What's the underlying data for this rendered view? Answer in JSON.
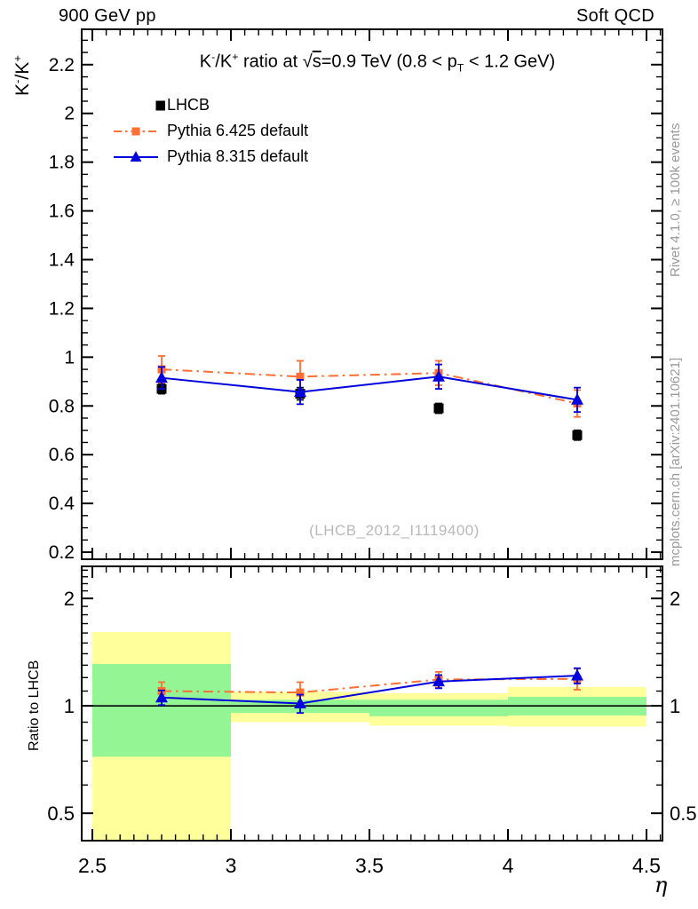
{
  "header": {
    "left": "900 GeV pp",
    "right": "Soft QCD"
  },
  "side_texts": {
    "top": "Rivet 4.1.0, ≥ 100k events",
    "bottom": "mcplots.cern.ch [arXiv:2401.10621]"
  },
  "watermark": "(LHCB_2012_I1119400)",
  "title_segments": [
    {
      "t": "K"
    },
    {
      "t": "-",
      "style": "sup"
    },
    {
      "t": "/K"
    },
    {
      "t": "+",
      "style": "sup"
    },
    {
      "t": " ratio at "
    },
    {
      "t": "√"
    },
    {
      "t": "s",
      "style": "overline"
    },
    {
      "t": "=0.9 TeV (0.8 < p"
    },
    {
      "t": "T",
      "style": "sub"
    },
    {
      "t": " < 1.2 GeV)"
    }
  ],
  "ylabel_main_segments": [
    {
      "t": "K"
    },
    {
      "t": "-",
      "style": "sup"
    },
    {
      "t": "/K"
    },
    {
      "t": "+",
      "style": "sup"
    }
  ],
  "axes": {
    "x": {
      "label": "η",
      "min": 2.4615,
      "max": 4.5577,
      "majors": [
        2.5,
        3,
        3.5,
        4,
        4.5
      ],
      "labels": [
        "2.5",
        "3",
        "3.5",
        "4",
        "4.5"
      ],
      "minor_step": 0.05
    },
    "y_main": {
      "min": 0.171,
      "max": 2.345,
      "majors": [
        0.2,
        0.4,
        0.6,
        0.8,
        1,
        1.2,
        1.4,
        1.6,
        1.8,
        2,
        2.2
      ],
      "labels": [
        "0.2",
        "0.4",
        "0.6",
        "0.8",
        "1",
        "1.2",
        "1.4",
        "1.6",
        "1.8",
        "2",
        "2.2"
      ],
      "minor_step": 0.05
    },
    "y_ratio": {
      "min": 0.419,
      "max": 2.46,
      "scale": "log",
      "majors": [
        0.5,
        1,
        2
      ],
      "labels": [
        "0.5",
        "1",
        "2"
      ],
      "minor_step": 0.1,
      "minor_range": [
        0.5,
        2.4
      ]
    }
  },
  "colors": {
    "lhcb_black": "#000000",
    "p6_orange": "#ff6e33",
    "p8_blue": "#0000dd",
    "band_yellow": "#ffff9c",
    "band_green": "#93f593",
    "frame": "#000000",
    "gray_text": "#9a9a9a",
    "watermark_gray": "#b9b9b9"
  },
  "legend": {
    "items": [
      {
        "label": "LHCB",
        "marker": "square",
        "color": "#000000",
        "line": "none",
        "marker_size": 11
      },
      {
        "label": "Pythia 6.425 default",
        "marker": "square",
        "color": "#ff6e33",
        "line": "dashdot",
        "marker_size": 9
      },
      {
        "label": "Pythia 8.315 default",
        "marker": "triangle",
        "color": "#0000dd",
        "line": "solid",
        "marker_size": 11
      }
    ]
  },
  "chart_data": {
    "type": "line",
    "title": "K-/K+ ratio at sqrt(s)=0.9 TeV (0.8 < pT < 1.2 GeV)",
    "xlabel": "η",
    "x": [
      2.75,
      3.25,
      3.75,
      4.25
    ],
    "bin_edges": [
      2.5,
      3.0,
      3.5,
      4.0,
      4.5
    ],
    "main_panel": {
      "ylabel": "K-/K+",
      "ylim": [
        0.171,
        2.345
      ],
      "series": [
        {
          "name": "LHCB",
          "color": "#000000",
          "marker": "square",
          "marker_size": 11,
          "line": "none",
          "values": [
            0.87,
            0.85,
            0.79,
            0.68
          ],
          "errors": [
            0.02,
            0.025,
            0.02,
            0.02
          ]
        },
        {
          "name": "Pythia 6.425 default",
          "color": "#ff6e33",
          "marker": "square",
          "marker_size": 9,
          "line": "dashdot",
          "values": [
            0.95,
            0.92,
            0.935,
            0.81
          ],
          "errors": [
            0.055,
            0.065,
            0.05,
            0.055
          ]
        },
        {
          "name": "Pythia 8.315 default",
          "color": "#0000dd",
          "marker": "triangle",
          "marker_size": 12,
          "line": "solid",
          "values": [
            0.915,
            0.857,
            0.92,
            0.825
          ],
          "errors": [
            0.045,
            0.05,
            0.05,
            0.05
          ]
        }
      ]
    },
    "ratio_panel": {
      "ylabel": "Ratio to LHCB",
      "ylim": [
        0.419,
        2.46
      ],
      "scale": "log",
      "reference_line": 1,
      "bands": [
        {
          "range": [
            2.5,
            3.0
          ],
          "yellow": [
            0.4,
            1.61
          ],
          "green": [
            0.72,
            1.31
          ]
        },
        {
          "range": [
            3.0,
            3.5
          ],
          "yellow": [
            0.9,
            1.095
          ],
          "green": [
            0.955,
            1.04
          ]
        },
        {
          "range": [
            3.5,
            4.0
          ],
          "yellow": [
            0.88,
            1.085
          ],
          "green": [
            0.935,
            1.04
          ]
        },
        {
          "range": [
            4.0,
            4.5
          ],
          "yellow": [
            0.875,
            1.13
          ],
          "green": [
            0.94,
            1.06
          ]
        }
      ],
      "series": [
        {
          "name": "Pythia 6.425 default",
          "color": "#ff6e33",
          "marker": "square",
          "marker_size": 9,
          "line": "dashdot",
          "values": [
            1.1,
            1.09,
            1.185,
            1.19
          ],
          "errors": [
            0.065,
            0.075,
            0.06,
            0.08
          ]
        },
        {
          "name": "Pythia 8.315 default",
          "color": "#0000dd",
          "marker": "triangle",
          "marker_size": 12,
          "line": "solid",
          "values": [
            1.055,
            1.015,
            1.17,
            1.215
          ],
          "errors": [
            0.05,
            0.06,
            0.05,
            0.06
          ]
        }
      ]
    }
  }
}
